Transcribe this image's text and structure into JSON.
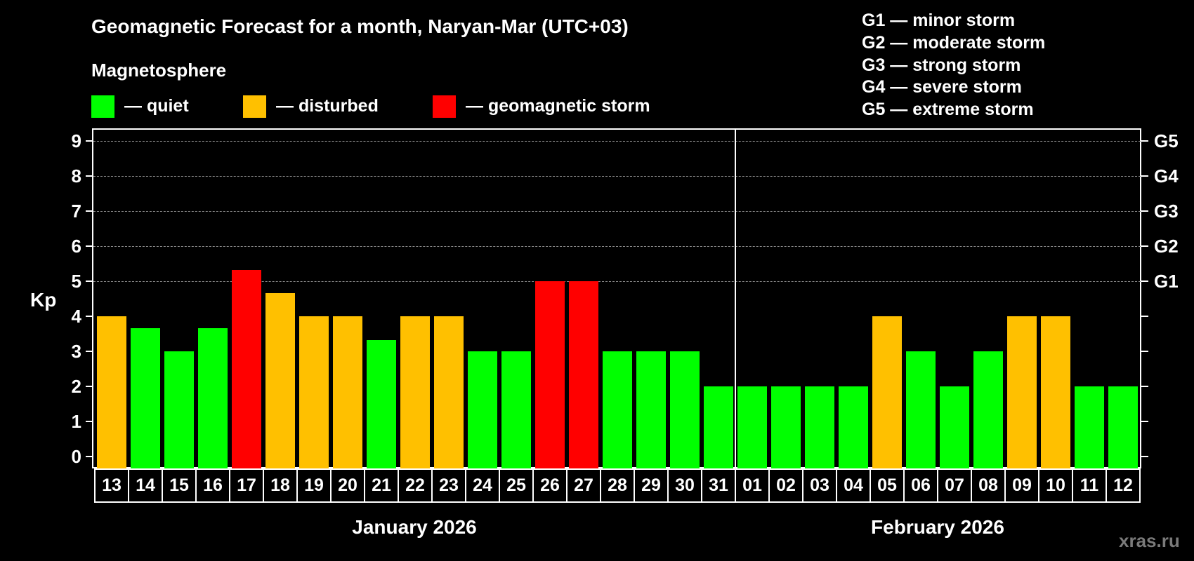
{
  "header": {
    "title": "Geomagnetic Forecast for a month, Naryan-Mar (UTC+03)",
    "subtitle": "Magnetosphere"
  },
  "legend": [
    {
      "label": "— quiet",
      "color": "#00ff00"
    },
    {
      "label": "— disturbed",
      "color": "#ffc000"
    },
    {
      "label": "— geomagnetic storm",
      "color": "#ff0000"
    }
  ],
  "storm_levels": [
    "G1 — minor storm",
    "G2 — moderate storm",
    "G3 — strong storm",
    "G4 — severe storm",
    "G5 — extreme storm"
  ],
  "axes": {
    "ylabel": "Kp",
    "yticks": [
      "0",
      "1",
      "2",
      "3",
      "4",
      "5",
      "6",
      "7",
      "8",
      "9"
    ],
    "right_ticks": [
      {
        "kp": 5,
        "label": "G1"
      },
      {
        "kp": 6,
        "label": "G2"
      },
      {
        "kp": 7,
        "label": "G3"
      },
      {
        "kp": 8,
        "label": "G4"
      },
      {
        "kp": 9,
        "label": "G5"
      }
    ]
  },
  "months": [
    {
      "label": "January 2026"
    },
    {
      "label": "February 2026"
    }
  ],
  "watermark": "xras.ru",
  "colors": {
    "quiet": "#00ff00",
    "disturbed": "#ffc000",
    "storm": "#ff0000",
    "background": "#000000",
    "grid": "#8a8a8a",
    "watermark": "#7a7a7a"
  },
  "chart_data": {
    "type": "bar",
    "title": "Geomagnetic Forecast for a month, Naryan-Mar (UTC+03)",
    "subtitle": "Magnetosphere",
    "xlabel": "",
    "ylabel": "Kp",
    "ylim": [
      0,
      9
    ],
    "grid": "dashed horizontal at Kp 5-9",
    "legend_position": "top",
    "categories": [
      "13",
      "14",
      "15",
      "16",
      "17",
      "18",
      "19",
      "20",
      "21",
      "22",
      "23",
      "24",
      "25",
      "26",
      "27",
      "28",
      "29",
      "30",
      "31",
      "01",
      "02",
      "03",
      "04",
      "05",
      "06",
      "07",
      "08",
      "09",
      "10",
      "11",
      "12"
    ],
    "category_groups": [
      {
        "label": "January 2026",
        "from": "13",
        "to": "31"
      },
      {
        "label": "February 2026",
        "from": "01",
        "to": "12"
      }
    ],
    "values": [
      4,
      3.67,
      3,
      3.67,
      5.33,
      4.67,
      4,
      4,
      3.33,
      4,
      4,
      3,
      3,
      5,
      5,
      3,
      3,
      3,
      2,
      2,
      2,
      2,
      2,
      4,
      3,
      2,
      3,
      4,
      4,
      2,
      2
    ],
    "status": [
      "disturbed",
      "quiet",
      "quiet",
      "quiet",
      "storm",
      "disturbed",
      "disturbed",
      "disturbed",
      "quiet",
      "disturbed",
      "disturbed",
      "quiet",
      "quiet",
      "storm",
      "storm",
      "quiet",
      "quiet",
      "quiet",
      "quiet",
      "quiet",
      "quiet",
      "quiet",
      "quiet",
      "disturbed",
      "quiet",
      "quiet",
      "quiet",
      "disturbed",
      "disturbed",
      "quiet",
      "quiet"
    ],
    "secondary_axis": {
      "5": "G1",
      "6": "G2",
      "7": "G3",
      "8": "G4",
      "9": "G5"
    }
  }
}
